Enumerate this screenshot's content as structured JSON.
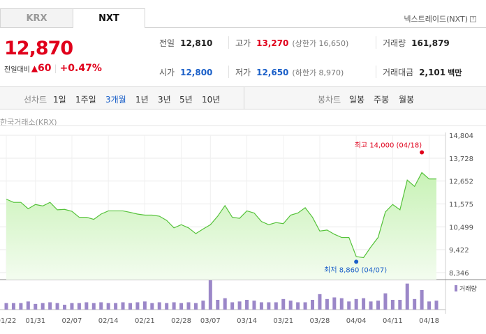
{
  "tabs": [
    {
      "label": "KRX",
      "active": false
    },
    {
      "label": "NXT",
      "active": true
    }
  ],
  "market_label": "넥스트레이드(NXT)",
  "price": {
    "current": "12,870",
    "change_label": "전일대비",
    "change_value": "60",
    "change_pct": "+0.47%"
  },
  "info": {
    "prev_close": {
      "label": "전일",
      "value": "12,810"
    },
    "open": {
      "label": "시가",
      "value": "12,800"
    },
    "high": {
      "label": "고가",
      "value": "13,270",
      "sub": "(상한가 16,650)"
    },
    "low": {
      "label": "저가",
      "value": "12,650",
      "sub": "(하한가 8,970)"
    },
    "volume": {
      "label": "거래량",
      "value": "161,879"
    },
    "amount": {
      "label": "거래대금",
      "value": "2,101",
      "unit": "백만"
    }
  },
  "line_periods": {
    "label": "선차트",
    "items": [
      "1일",
      "1주일",
      "3개월",
      "1년",
      "3년",
      "5년",
      "10년"
    ],
    "active": "3개월"
  },
  "candle_periods": {
    "label": "봉차트",
    "items": [
      "일봉",
      "주봉",
      "월봉"
    ]
  },
  "source_label": "한국거래소(KRX)",
  "colors": {
    "up": "#e0001b",
    "down": "#1a5fc8",
    "line": "#55c23a",
    "area_top": "#c8f2b6",
    "area_bottom": "#f3fcef",
    "volume_bar": "#9b87c8"
  },
  "chart_data": {
    "type": "area",
    "y_ticks": [
      "14,804",
      "13,728",
      "12,652",
      "11,575",
      "10,499",
      "9,422",
      "8,346"
    ],
    "ylim": [
      8346,
      14804
    ],
    "x_ticks": [
      "01/22",
      "01/31",
      "02/07",
      "02/14",
      "02/21",
      "02/28",
      "03/07",
      "03/14",
      "03/21",
      "03/28",
      "04/04",
      "04/11",
      "04/18"
    ],
    "x_tick_index": [
      0,
      4,
      9,
      14,
      19,
      24,
      28,
      33,
      38,
      43,
      48,
      53,
      58
    ],
    "prices": [
      11800,
      11650,
      11650,
      11350,
      11550,
      11480,
      11650,
      11300,
      11320,
      11230,
      10950,
      10950,
      10850,
      11100,
      11250,
      11250,
      11250,
      11180,
      11100,
      11050,
      11050,
      11000,
      10800,
      10450,
      10600,
      10450,
      10180,
      10400,
      10600,
      11000,
      11500,
      10950,
      10900,
      11250,
      11150,
      10750,
      10600,
      10700,
      10650,
      11050,
      11150,
      11400,
      10950,
      10300,
      10350,
      10150,
      10000,
      10000,
      9100,
      9050,
      9550,
      10000,
      11200,
      11550,
      11300,
      12700,
      12400,
      13050,
      12750,
      12750
    ],
    "volume": [
      8,
      8,
      8,
      10,
      7,
      8,
      9,
      8,
      6,
      8,
      8,
      9,
      8,
      9,
      8,
      8,
      9,
      8,
      9,
      10,
      8,
      9,
      8,
      9,
      8,
      9,
      8,
      11,
      36,
      12,
      14,
      9,
      10,
      12,
      11,
      9,
      9,
      9,
      13,
      11,
      9,
      9,
      12,
      19,
      13,
      15,
      14,
      10,
      13,
      14,
      10,
      11,
      20,
      12,
      12,
      32,
      13,
      24,
      10,
      11
    ],
    "high_marker": {
      "label": "최고",
      "value": "14,000",
      "date": "(04/18)",
      "index": 57,
      "price": 14000
    },
    "low_marker": {
      "label": "최저",
      "value": "8,860",
      "date": "(04/07)",
      "index": 48,
      "price": 8860
    },
    "volume_legend": "거래량"
  }
}
